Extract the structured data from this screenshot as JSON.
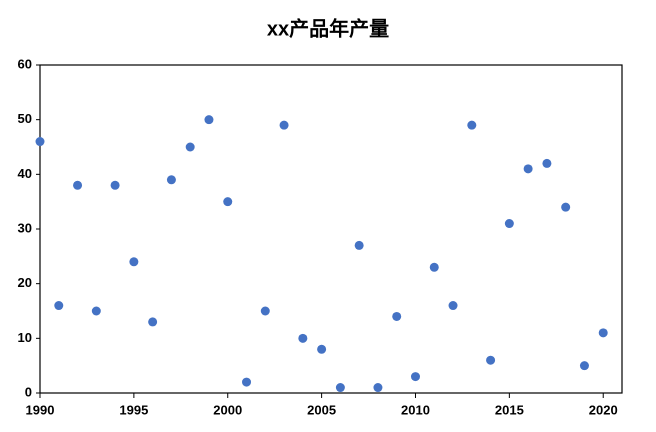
{
  "chart_data": {
    "type": "scatter",
    "title": "xx产品年产量",
    "x": [
      1990,
      1991,
      1992,
      1993,
      1994,
      1995,
      1996,
      1997,
      1998,
      1999,
      2000,
      2001,
      2002,
      2003,
      2004,
      2005,
      2006,
      2007,
      2008,
      2009,
      2010,
      2011,
      2012,
      2013,
      2014,
      2015,
      2016,
      2017,
      2018,
      2019,
      2020
    ],
    "values": [
      46,
      16,
      38,
      15,
      38,
      24,
      13,
      39,
      45,
      50,
      35,
      2,
      15,
      49,
      10,
      8,
      1,
      27,
      1,
      14,
      3,
      23,
      16,
      49,
      6,
      31,
      41,
      42,
      34,
      5,
      11
    ],
    "color": "#4472c4",
    "xlim": [
      1990,
      2021
    ],
    "xticks": [
      1990,
      1995,
      2000,
      2005,
      2010,
      2015,
      2020
    ],
    "ylim": [
      0,
      60
    ],
    "yticks": [
      0,
      10,
      20,
      30,
      40,
      50,
      60
    ],
    "grid": false
  }
}
